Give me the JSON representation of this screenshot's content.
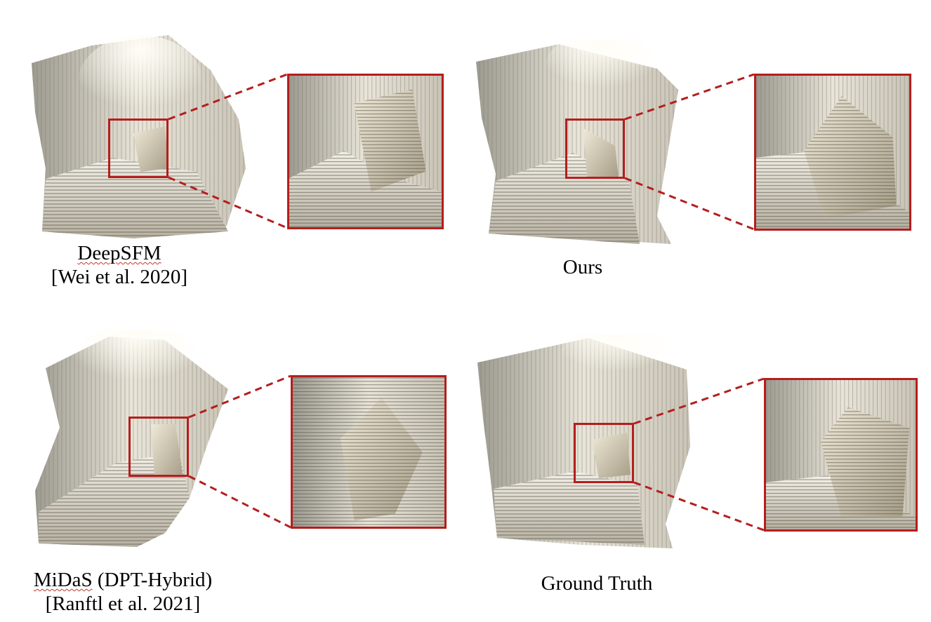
{
  "panels": [
    {
      "id": "deepsfm",
      "method": "DeepSFM",
      "citation": "[Wei et al. 2020]"
    },
    {
      "id": "ours",
      "method": "Ours",
      "citation": ""
    },
    {
      "id": "midas",
      "method": "MiDaS",
      "method_suffix": " (DPT-Hybrid)",
      "citation": "[Ranftl et al. 2021]"
    },
    {
      "id": "gt",
      "method": "Ground Truth",
      "citation": ""
    }
  ],
  "colors": {
    "highlight_box": "#b41e1e",
    "point_cloud": "#e8e2d2",
    "shadow": "#8f8a7d"
  },
  "icons": [
    "point-cloud-render",
    "zoom-inset",
    "dashed-connector"
  ]
}
